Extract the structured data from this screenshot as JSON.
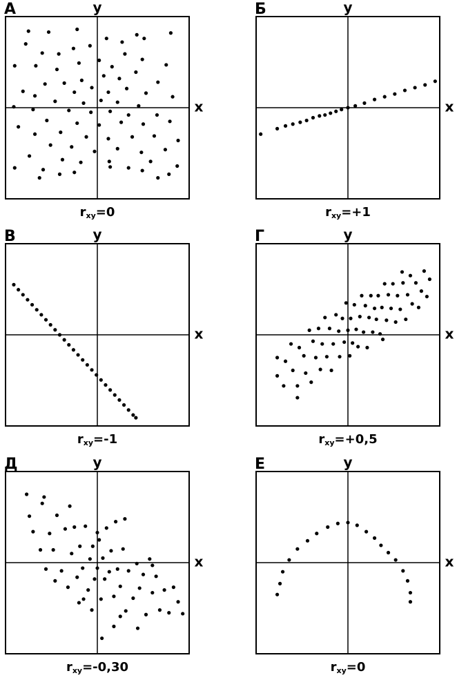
{
  "chart_data": [
    {
      "type": "scatter",
      "title": "А",
      "x_label": "x",
      "y_label": "y",
      "caption": {
        "main": "r",
        "sub": "xy",
        "value": "=0"
      },
      "xlim": [
        -10,
        10
      ],
      "ylim": [
        -10,
        10
      ],
      "x": [
        -7.5,
        -5.3,
        -2.2,
        4.3,
        8,
        -7.8,
        -6,
        -4.2,
        -2.6,
        1,
        2.7,
        5.1,
        -0.8,
        -9,
        -6.7,
        -4.4,
        -2,
        0.2,
        1.6,
        3,
        4.9,
        7.5,
        -5.7,
        -3.6,
        -1.7,
        0.7,
        2.4,
        4.2,
        6.6,
        -8.1,
        -6.8,
        -2.5,
        -0.6,
        1.2,
        3.2,
        5.3,
        8.2,
        -4.6,
        -1.5,
        0.4,
        2.2,
        4.5,
        -7,
        -9.1,
        -3.1,
        -0.7,
        1.4,
        3.4,
        6.5,
        -5.5,
        -2.2,
        0.2,
        2.6,
        5,
        7.9,
        -8.6,
        -6.8,
        -4,
        -1.2,
        1.2,
        3.8,
        6.2,
        8.8,
        -5.1,
        -2.8,
        -0.3,
        2.2,
        4.8,
        7.4,
        -7.4,
        -3.8,
        1.3,
        5.8,
        -9,
        -5.9,
        -1.8,
        3.4,
        7.8,
        -6.3,
        -4.1,
        1.4,
        4.9,
        8.7,
        -2.5,
        6.6
      ],
      "y": [
        8.4,
        8.3,
        8.6,
        8,
        8.2,
        7,
        6,
        5.9,
        6.5,
        7.6,
        7.2,
        7.6,
        6.8,
        4.6,
        4.6,
        4.2,
        4.9,
        5.2,
        4.5,
        5.9,
        5.3,
        4.7,
        2.6,
        2.7,
        3,
        3.5,
        3.2,
        3.9,
        2.8,
        1.8,
        1.3,
        1.7,
        2.2,
        1.7,
        2.1,
        1.6,
        1.2,
        0.7,
        0.5,
        0.8,
        0.6,
        0.2,
        -0.2,
        0.1,
        -0.3,
        -0.5,
        -0.4,
        -0.8,
        -0.8,
        -1.4,
        -1.7,
        -1.9,
        -1.6,
        -1.8,
        -1.5,
        -2.1,
        -2.9,
        -2.7,
        -3.2,
        -3.4,
        -3.2,
        -3.1,
        -3.6,
        -4.1,
        -4.3,
        -4.8,
        -4.5,
        -4.9,
        -4.6,
        -5.3,
        -5.7,
        -5.9,
        -5.9,
        -6.6,
        -6.8,
        -6,
        -6.6,
        -7.3,
        -7.7,
        -7.3,
        -6.5,
        -6.9,
        -6.4,
        -7.1,
        -7.7
      ]
    },
    {
      "type": "scatter",
      "title": "Б",
      "x_label": "x",
      "y_label": "y",
      "caption": {
        "main": "r",
        "sub": "xy",
        "value": "=+1"
      },
      "xlim": [
        -10,
        10
      ],
      "ylim": [
        -10,
        10
      ],
      "x": [
        -9.5,
        -7.7,
        -6.8,
        -6,
        -5.2,
        -4.5,
        -3.8,
        -3.1,
        -2.5,
        -1.9,
        -1.3,
        -0.7,
        0,
        0.8,
        1.8,
        2.9,
        4,
        5.1,
        6.2,
        7.3,
        8.4,
        9.5
      ],
      "y": [
        -2.9,
        -2.3,
        -2,
        -1.8,
        -1.6,
        -1.4,
        -1.1,
        -0.9,
        -0.8,
        -0.6,
        -0.4,
        -0.2,
        0,
        0.2,
        0.5,
        0.9,
        1.2,
        1.5,
        1.9,
        2.2,
        2.5,
        2.9
      ]
    },
    {
      "type": "scatter",
      "title": "В",
      "x_label": "x",
      "y_label": "y",
      "caption": {
        "main": "r",
        "sub": "xy",
        "value": "=-1"
      },
      "xlim": [
        -10,
        10
      ],
      "ylim": [
        -10,
        10
      ],
      "x": [
        -9.1,
        -8.6,
        -8.1,
        -7.6,
        -7.1,
        -6.6,
        -6.1,
        -5.6,
        -5.1,
        -4.6,
        -4.1,
        -3.6,
        -3.1,
        -2.6,
        -2.1,
        -1.6,
        -1.1,
        -0.6,
        -0.1,
        0.4,
        0.9,
        1.4,
        1.9,
        2.4,
        2.9,
        3.4,
        3.9,
        4.2
      ],
      "y": [
        5.5,
        4.95,
        4.4,
        3.85,
        3.3,
        2.75,
        2.2,
        1.65,
        1.1,
        0.55,
        0,
        -0.55,
        -1.1,
        -1.65,
        -2.2,
        -2.75,
        -3.3,
        -3.85,
        -4.4,
        -4.95,
        -5.5,
        -6.05,
        -6.6,
        -7.15,
        -7.7,
        -8.25,
        -8.8,
        -9.1
      ]
    },
    {
      "type": "scatter",
      "title": "Г",
      "x_label": "x",
      "y_label": "y",
      "caption": {
        "main": "r",
        "sub": "xy",
        "value": "=+0,5"
      },
      "xlim": [
        -10,
        10
      ],
      "ylim": [
        -10,
        10
      ],
      "x": [
        -7.7,
        -7.7,
        -7,
        -6.8,
        -6.2,
        -6,
        -5.5,
        -5.3,
        -4.8,
        -4.6,
        -4.2,
        -4,
        -3.8,
        -3.5,
        -3.2,
        -3,
        -2.8,
        -2.5,
        -2.3,
        -2,
        -1.8,
        -1.6,
        -1.3,
        -1,
        -0.9,
        -0.6,
        -0.4,
        -0.2,
        0,
        0.2,
        0.3,
        0.5,
        0.7,
        0.9,
        1.1,
        1.3,
        1.5,
        1.7,
        1.9,
        2.1,
        2.3,
        2.5,
        2.7,
        2.9,
        3.1,
        3.3,
        3.5,
        3.7,
        4,
        4.2,
        4.4,
        4.7,
        4.9,
        5.2,
        5.4,
        5.7,
        6,
        6.3,
        6.5,
        6.8,
        7,
        7.4,
        7.7,
        8,
        8.3,
        8.6,
        8.9,
        5.9,
        3.8,
        -5.5
      ],
      "y": [
        -2.5,
        -4.5,
        -5.6,
        -2.9,
        -1,
        -3.9,
        -5.6,
        -1.4,
        -2.3,
        -4.2,
        0.5,
        -5.2,
        -0.7,
        -2.5,
        0.7,
        -3.8,
        -1,
        1.9,
        -2.4,
        0.7,
        -3.9,
        -1,
        2.2,
        0.4,
        -2.4,
        1.8,
        -0.8,
        3.5,
        0.5,
        -2.3,
        1.8,
        -0.9,
        3.3,
        0.6,
        -1.3,
        2,
        4.3,
        0.3,
        3.2,
        -1.4,
        1.9,
        4.3,
        0.3,
        2.9,
        1.7,
        4.3,
        0.1,
        3,
        5.6,
        1.6,
        4.4,
        2.9,
        5.6,
        1.4,
        4.3,
        2.8,
        5.7,
        1.7,
        4.4,
        6.5,
        3.4,
        5.7,
        3,
        4.8,
        7,
        4.2,
        6.1,
        6.9,
        -0.5,
        -6.9
      ]
    },
    {
      "type": "scatter",
      "title": "Д",
      "x_label": "x",
      "y_label": "y",
      "caption": {
        "main": "r",
        "sub": "xy",
        "value": "=-0,30"
      },
      "xlim": [
        -10,
        10
      ],
      "ylim": [
        -10,
        10
      ],
      "x": [
        -7.7,
        -6,
        -4.4,
        -7.4,
        -5.2,
        -7,
        -6.2,
        -4.8,
        -3.5,
        -3.9,
        -5.6,
        -2.8,
        -2.5,
        -2.2,
        -1.9,
        -1.6,
        -1.3,
        -1,
        -0.8,
        -0.5,
        -0.3,
        0,
        0.2,
        0.4,
        0.6,
        0.8,
        1,
        1.3,
        1.5,
        1.8,
        2,
        2.2,
        2.5,
        2.8,
        3.1,
        3.4,
        3,
        3.9,
        4.3,
        4.6,
        5,
        5.3,
        5.7,
        6,
        6.4,
        6.8,
        7.3,
        7.8,
        8.3,
        9.3,
        8.8,
        -3.2,
        -0.6,
        0.5,
        -1.5,
        -4.6,
        2.5,
        4.4,
        6,
        -5.8,
        -3,
        0,
        -2,
        1.8
      ],
      "y": [
        7.5,
        6.5,
        5.2,
        5.1,
        3.2,
        3.4,
        1.4,
        1.4,
        3.7,
        -0.9,
        -0.7,
        1,
        3.9,
        -1.6,
        1.8,
        -0.6,
        4,
        -3,
        0.4,
        1.8,
        -1.8,
        -0.6,
        2.5,
        -4,
        0.5,
        -1.8,
        3.8,
        -1,
        1.3,
        -3.7,
        4.5,
        -0.7,
        -2.6,
        1.5,
        -5.3,
        -0.9,
        4.8,
        -3.9,
        -0.1,
        -2.8,
        -1.3,
        -5.7,
        0.4,
        -3.3,
        -1.5,
        -5.2,
        -3,
        -5.5,
        -2.7,
        -5.6,
        -4.3,
        -2.7,
        -5.2,
        -8.3,
        -4,
        -2,
        -5.9,
        -7.2,
        -0.3,
        7.2,
        6.2,
        3.3,
        -4.4,
        -7
      ]
    },
    {
      "type": "scatter",
      "title": "Е",
      "x_label": "x",
      "y_label": "y",
      "caption": {
        "main": "r",
        "sub": "xy",
        "value": "=0"
      },
      "xlim": [
        -10,
        10
      ],
      "ylim": [
        -10,
        10
      ],
      "x": [
        -7.7,
        -7.4,
        -7.1,
        -6.4,
        -5.5,
        -4.4,
        -3.4,
        -2.2,
        -1.1,
        0,
        1,
        2,
        2.9,
        3.6,
        4.4,
        5.2,
        6,
        6.5,
        6.8,
        6.8
      ],
      "y": [
        -3.5,
        -2.3,
        -1,
        0.3,
        1.5,
        2.4,
        3.2,
        3.9,
        4.3,
        4.4,
        4.1,
        3.4,
        2.7,
        1.9,
        1.1,
        0.3,
        -0.9,
        -2,
        -3.3,
        -4.3
      ]
    }
  ]
}
